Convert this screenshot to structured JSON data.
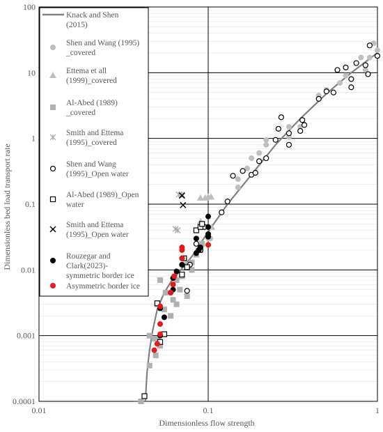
{
  "chart_data": {
    "type": "scatter",
    "title": "",
    "xlabel": "Dimensionless flow strength",
    "ylabel": "Dimensionless bed load transport rate",
    "x_scale": "log",
    "y_scale": "log",
    "xlim": [
      0.01,
      1
    ],
    "ylim": [
      0.0001,
      100
    ],
    "x_ticks": [
      "0.01",
      "0.1",
      "1"
    ],
    "y_ticks": [
      "0.0001",
      "0.001",
      "0.01",
      "0.1",
      "1",
      "10",
      "100"
    ],
    "grid": true,
    "legend_position": "top-left",
    "curve": {
      "name": "Knack and Shen (2015)",
      "color": "#808080",
      "x": [
        0.0425,
        0.0435,
        0.045,
        0.047,
        0.05,
        0.055,
        0.06,
        0.07,
        0.08,
        0.1,
        0.13,
        0.18,
        0.25,
        0.35,
        0.5,
        0.7,
        1.0
      ],
      "y": [
        0.0001,
        0.00028,
        0.0006,
        0.0012,
        0.0025,
        0.0045,
        0.0065,
        0.0105,
        0.016,
        0.038,
        0.1,
        0.28,
        0.8,
        2.0,
        4.8,
        10,
        20
      ]
    },
    "series": [
      {
        "name": "Shen and Wang (1995) _covered",
        "marker": "circle-filled",
        "color": "#bfbfbf",
        "points": [
          [
            0.1,
            0.03
          ],
          [
            0.103,
            0.03
          ],
          [
            0.12,
            0.075
          ],
          [
            0.15,
            0.18
          ],
          [
            0.15,
            0.24
          ],
          [
            0.17,
            0.35
          ],
          [
            0.18,
            0.5
          ],
          [
            0.2,
            0.6
          ],
          [
            0.22,
            0.8
          ],
          [
            0.22,
            0.95
          ],
          [
            0.3,
            1.05
          ],
          [
            0.3,
            1.5
          ],
          [
            0.35,
            1.5
          ],
          [
            0.45,
            4.5
          ],
          [
            0.5,
            5.5
          ],
          [
            0.6,
            7
          ],
          [
            0.65,
            9
          ],
          [
            0.8,
            17
          ],
          [
            0.85,
            11
          ],
          [
            0.9,
            17
          ],
          [
            0.95,
            28
          ],
          [
            1.0,
            22
          ]
        ]
      },
      {
        "name": "Ettema et all (1999)_covered",
        "marker": "triangle-filled",
        "color": "#bfbfbf",
        "points": [
          [
            0.09,
            0.125
          ],
          [
            0.096,
            0.125
          ],
          [
            0.1,
            0.13
          ],
          [
            0.104,
            0.13
          ],
          [
            0.09,
            0.055
          ],
          [
            0.105,
            0.045
          ]
        ]
      },
      {
        "name": "Al-Abed (1989) _covered",
        "marker": "square-filled",
        "color": "#b0b0b0",
        "points": [
          [
            0.04,
            0.0001
          ],
          [
            0.045,
            0.00035
          ],
          [
            0.045,
            0.001
          ],
          [
            0.048,
            0.0009
          ],
          [
            0.049,
            0.0005
          ],
          [
            0.05,
            0.0009
          ],
          [
            0.052,
            0.0007
          ],
          [
            0.05,
            0.003
          ],
          [
            0.052,
            0.007
          ],
          [
            0.055,
            0.0025
          ],
          [
            0.056,
            0.0045
          ],
          [
            0.06,
            0.002
          ],
          [
            0.062,
            0.0035
          ],
          [
            0.065,
            0.007
          ],
          [
            0.065,
            0.003
          ],
          [
            0.068,
            0.005
          ],
          [
            0.07,
            0.008
          ],
          [
            0.075,
            0.012
          ],
          [
            0.075,
            0.004
          ],
          [
            0.08,
            0.01
          ],
          [
            0.08,
            0.013
          ],
          [
            0.085,
            0.017
          ],
          [
            0.09,
            0.02
          ],
          [
            0.092,
            0.025
          ],
          [
            0.095,
            0.045
          ]
        ]
      },
      {
        "name": "Smith and Ettema (1995)_covered",
        "marker": "asterisk",
        "color": "#a6a6a6",
        "points": [
          [
            0.064,
            0.042
          ],
          [
            0.066,
            0.04
          ],
          [
            0.067,
            0.14
          ],
          [
            0.07,
            0.14
          ]
        ]
      },
      {
        "name": "Shen and Wang (1995)_Open water",
        "marker": "circle-open",
        "color": "#000000",
        "points": [
          [
            0.075,
            0.0048
          ],
          [
            0.078,
            0.012
          ],
          [
            0.085,
            0.025
          ],
          [
            0.09,
            0.02
          ],
          [
            0.095,
            0.045
          ],
          [
            0.1,
            0.032
          ],
          [
            0.12,
            0.075
          ],
          [
            0.13,
            0.11
          ],
          [
            0.14,
            0.27
          ],
          [
            0.16,
            0.32
          ],
          [
            0.18,
            0.28
          ],
          [
            0.19,
            0.3
          ],
          [
            0.2,
            0.45
          ],
          [
            0.22,
            0.5
          ],
          [
            0.25,
            0.95
          ],
          [
            0.26,
            1.4
          ],
          [
            0.27,
            2.1
          ],
          [
            0.3,
            0.8
          ],
          [
            0.3,
            1.2
          ],
          [
            0.35,
            1.3
          ],
          [
            0.36,
            1.9
          ],
          [
            0.37,
            1.6
          ],
          [
            0.45,
            4
          ],
          [
            0.5,
            5.2
          ],
          [
            0.55,
            5
          ],
          [
            0.58,
            11
          ],
          [
            0.65,
            12
          ],
          [
            0.7,
            6
          ],
          [
            0.7,
            8
          ],
          [
            0.75,
            14
          ],
          [
            0.85,
            13
          ],
          [
            0.88,
            9.5
          ],
          [
            0.9,
            26
          ],
          [
            1.0,
            18
          ]
        ]
      },
      {
        "name": "Al-Abed (1989)_Open water",
        "marker": "square-open",
        "color": "#000000",
        "points": [
          [
            0.042,
            0.00012
          ],
          [
            0.05,
            0.0031
          ],
          [
            0.052,
            0.0008
          ],
          [
            0.055,
            0.00105
          ],
          [
            0.07,
            0.0085
          ],
          [
            0.072,
            0.015
          ],
          [
            0.075,
            0.011
          ],
          [
            0.085,
            0.04
          ],
          [
            0.09,
            0.045
          ],
          [
            0.092,
            0.05
          ]
        ]
      },
      {
        "name": "Smith and Ettema (1995)_Open water",
        "marker": "cross",
        "color": "#000000",
        "points": [
          [
            0.07,
            0.135
          ],
          [
            0.071,
            0.097
          ]
        ]
      },
      {
        "name": "Rouzegar and Clark(2023)-symmetric border ice",
        "marker": "circle-filled",
        "color": "#000000",
        "points": [
          [
            0.052,
            0.001
          ],
          [
            0.052,
            0.0026
          ],
          [
            0.055,
            0.0019
          ],
          [
            0.06,
            0.0045
          ],
          [
            0.062,
            0.005
          ],
          [
            0.062,
            0.0075
          ],
          [
            0.063,
            0.008
          ],
          [
            0.065,
            0.0095
          ],
          [
            0.07,
            0.012
          ],
          [
            0.07,
            0.015
          ],
          [
            0.085,
            0.018
          ],
          [
            0.088,
            0.02
          ],
          [
            0.09,
            0.022
          ],
          [
            0.085,
            0.03
          ],
          [
            0.1,
            0.065
          ],
          [
            0.1,
            0.045
          ],
          [
            0.1,
            0.035
          ],
          [
            0.1,
            0.032
          ]
        ]
      },
      {
        "name": "Asymmetric border ice",
        "marker": "circle-filled",
        "color": "#e41a1c",
        "points": [
          [
            0.048,
            0.0006
          ],
          [
            0.05,
            0.00075
          ],
          [
            0.052,
            0.00105
          ],
          [
            0.052,
            0.0015
          ],
          [
            0.052,
            0.0028
          ],
          [
            0.06,
            0.0045
          ],
          [
            0.062,
            0.006
          ],
          [
            0.063,
            0.008
          ],
          [
            0.07,
            0.015
          ],
          [
            0.07,
            0.02
          ],
          [
            0.07,
            0.022
          ],
          [
            0.1,
            0.024
          ]
        ]
      }
    ]
  },
  "legend": {
    "entries": [
      {
        "lines": [
          "Knack and Shen",
          "(2015)"
        ],
        "marker": "line",
        "color": "#808080"
      },
      {
        "lines": [
          "Shen and Wang (1995)",
          "_covered"
        ],
        "marker": "circle-filled",
        "color": "#bfbfbf"
      },
      {
        "lines": [
          "Ettema et all",
          "(1999)_covered"
        ],
        "marker": "triangle-filled",
        "color": "#bfbfbf"
      },
      {
        "lines": [
          "Al-Abed (1989)",
          "_covered"
        ],
        "marker": "square-filled",
        "color": "#b0b0b0"
      },
      {
        "lines": [
          "Smith and Ettema",
          "(1995)_covered"
        ],
        "marker": "asterisk",
        "color": "#a6a6a6"
      },
      {
        "lines": [
          "Shen and Wang",
          "(1995)_Open water"
        ],
        "marker": "circle-open",
        "color": "#000000"
      },
      {
        "lines": [
          "Al-Abed (1989)_Open",
          "water"
        ],
        "marker": "square-open",
        "color": "#000000"
      },
      {
        "lines": [
          "Smith and Ettema",
          "(1995)_Open water"
        ],
        "marker": "cross",
        "color": "#000000"
      },
      {
        "lines": [
          "Rouzegar and",
          "Clark(2023)-",
          "symmetric border ice"
        ],
        "marker": "circle-filled",
        "color": "#000000"
      },
      {
        "lines": [
          "Asymmetric border ice"
        ],
        "marker": "circle-filled",
        "color": "#e41a1c"
      }
    ]
  }
}
